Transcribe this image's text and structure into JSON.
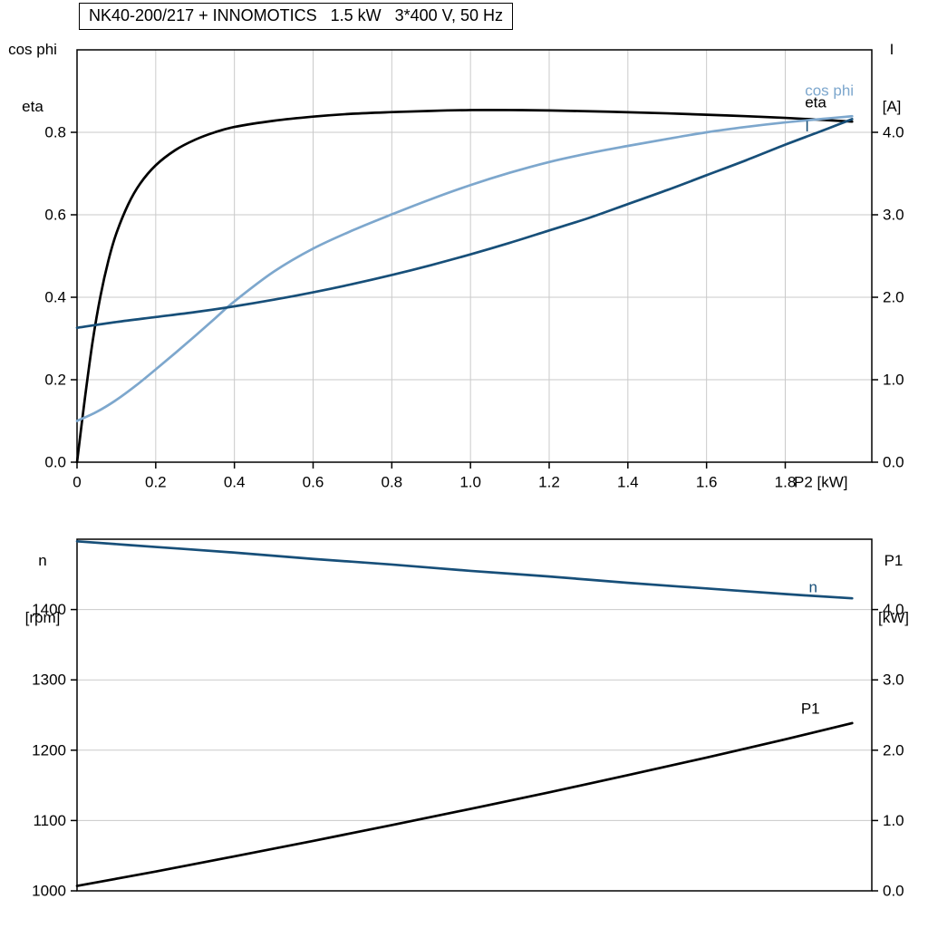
{
  "palette": {
    "grid": "#cacaca",
    "frame": "#000000",
    "black": "#000000",
    "light_blue": "#7da7cd",
    "dark_blue": "#174f79"
  },
  "chart_data": [
    {
      "id": "electrical-curves",
      "type": "line",
      "title": "NK40-200/217 + INNOMOTICS   1.5 kW   3*400 V, 50 Hz",
      "x_axis": {
        "label": "P2 [kW]",
        "min": 0,
        "max": 2.02,
        "tick_values": [
          0,
          0.2,
          0.4,
          0.6,
          0.8,
          1.0,
          1.2,
          1.4,
          1.6,
          1.8
        ],
        "tick_labels": [
          "0",
          "0.2",
          "0.4",
          "0.6",
          "0.8",
          "1.0",
          "1.2",
          "1.4",
          "1.6",
          "1.8"
        ],
        "grid": true
      },
      "y_left": {
        "unit_lines": [
          "cos phi",
          "eta"
        ],
        "min": 0,
        "max": 1.0,
        "tick_values": [
          0,
          0.2,
          0.4,
          0.6,
          0.8
        ],
        "tick_labels": [
          "0.0",
          "0.2",
          "0.4",
          "0.6",
          "0.8"
        ],
        "grid": true
      },
      "y_right": {
        "unit_lines": [
          "I",
          "[A]"
        ],
        "min": 0,
        "max": 5,
        "tick_values": [
          0,
          1,
          2,
          3,
          4
        ],
        "tick_labels": [
          "0.0",
          "1.0",
          "2.0",
          "3.0",
          "4.0"
        ]
      },
      "series": [
        {
          "name": "eta",
          "label": "eta",
          "axis": "left",
          "color": "#000000",
          "label_at": [
            1.85,
            0.872
          ],
          "points": [
            [
              0,
              0
            ],
            [
              0.02,
              0.155
            ],
            [
              0.04,
              0.295
            ],
            [
              0.06,
              0.405
            ],
            [
              0.08,
              0.49
            ],
            [
              0.1,
              0.555
            ],
            [
              0.13,
              0.625
            ],
            [
              0.16,
              0.675
            ],
            [
              0.2,
              0.72
            ],
            [
              0.25,
              0.757
            ],
            [
              0.3,
              0.782
            ],
            [
              0.35,
              0.8
            ],
            [
              0.4,
              0.813
            ],
            [
              0.5,
              0.828
            ],
            [
              0.6,
              0.838
            ],
            [
              0.7,
              0.845
            ],
            [
              0.8,
              0.849
            ],
            [
              0.9,
              0.852
            ],
            [
              1.0,
              0.854
            ],
            [
              1.1,
              0.854
            ],
            [
              1.2,
              0.853
            ],
            [
              1.35,
              0.85
            ],
            [
              1.5,
              0.846
            ],
            [
              1.65,
              0.841
            ],
            [
              1.8,
              0.835
            ],
            [
              1.97,
              0.826
            ]
          ]
        },
        {
          "name": "cos phi",
          "label": "cos phi",
          "axis": "left",
          "color": "#7da7cd",
          "label_at": [
            1.85,
            0.901
          ],
          "points": [
            [
              0,
              0.1
            ],
            [
              0.05,
              0.122
            ],
            [
              0.1,
              0.151
            ],
            [
              0.15,
              0.186
            ],
            [
              0.2,
              0.225
            ],
            [
              0.25,
              0.265
            ],
            [
              0.3,
              0.306
            ],
            [
              0.35,
              0.348
            ],
            [
              0.4,
              0.39
            ],
            [
              0.5,
              0.462
            ],
            [
              0.6,
              0.518
            ],
            [
              0.7,
              0.562
            ],
            [
              0.8,
              0.601
            ],
            [
              0.9,
              0.638
            ],
            [
              1.0,
              0.672
            ],
            [
              1.1,
              0.702
            ],
            [
              1.2,
              0.728
            ],
            [
              1.3,
              0.749
            ],
            [
              1.4,
              0.767
            ],
            [
              1.5,
              0.784
            ],
            [
              1.6,
              0.8
            ],
            [
              1.7,
              0.813
            ],
            [
              1.8,
              0.824
            ],
            [
              1.9,
              0.833
            ],
            [
              1.97,
              0.839
            ]
          ]
        },
        {
          "name": "I",
          "label": "I",
          "axis": "right",
          "color": "#174f79",
          "label_at": [
            1.85,
            4.07
          ],
          "points": [
            [
              0,
              1.63
            ],
            [
              0.1,
              1.7
            ],
            [
              0.2,
              1.76
            ],
            [
              0.3,
              1.82
            ],
            [
              0.4,
              1.89
            ],
            [
              0.5,
              1.97
            ],
            [
              0.6,
              2.06
            ],
            [
              0.7,
              2.16
            ],
            [
              0.8,
              2.27
            ],
            [
              0.9,
              2.39
            ],
            [
              1.0,
              2.52
            ],
            [
              1.1,
              2.66
            ],
            [
              1.2,
              2.81
            ],
            [
              1.3,
              2.96
            ],
            [
              1.4,
              3.13
            ],
            [
              1.5,
              3.3
            ],
            [
              1.6,
              3.48
            ],
            [
              1.7,
              3.66
            ],
            [
              1.8,
              3.85
            ],
            [
              1.9,
              4.03
            ],
            [
              1.97,
              4.16
            ]
          ]
        }
      ]
    },
    {
      "id": "speed-power-curves",
      "type": "line",
      "title": "",
      "x_axis": {
        "label": "",
        "min": 0,
        "max": 2.02,
        "tick_values": [],
        "tick_labels": [],
        "grid": false
      },
      "y_left": {
        "unit_lines": [
          "n",
          "[rpm]"
        ],
        "min": 1000,
        "max": 1500,
        "tick_values": [
          1000,
          1100,
          1200,
          1300,
          1400
        ],
        "tick_labels": [
          "1000",
          "1100",
          "1200",
          "1300",
          "1400"
        ],
        "grid": true
      },
      "y_right": {
        "unit_lines": [
          "P1",
          "[kW]"
        ],
        "min": 0,
        "max": 5,
        "tick_values": [
          0,
          1,
          2,
          3,
          4
        ],
        "tick_labels": [
          "0.0",
          "1.0",
          "2.0",
          "3.0",
          "4.0"
        ]
      },
      "series": [
        {
          "name": "n",
          "label": "n",
          "axis": "left",
          "color": "#174f79",
          "label_at": [
            1.86,
            1432
          ],
          "points": [
            [
              0,
              1497
            ],
            [
              0.2,
              1489
            ],
            [
              0.4,
              1481
            ],
            [
              0.6,
              1472
            ],
            [
              0.8,
              1464
            ],
            [
              1.0,
              1455
            ],
            [
              1.2,
              1447
            ],
            [
              1.4,
              1438
            ],
            [
              1.6,
              1430
            ],
            [
              1.8,
              1422
            ],
            [
              1.97,
              1416
            ]
          ]
        },
        {
          "name": "P1",
          "label": "P1",
          "axis": "right",
          "color": "#000000",
          "label_at": [
            1.84,
            2.59
          ],
          "points": [
            [
              0,
              0.07
            ],
            [
              0.2,
              0.275
            ],
            [
              0.4,
              0.49
            ],
            [
              0.6,
              0.71
            ],
            [
              0.8,
              0.935
            ],
            [
              1.0,
              1.165
            ],
            [
              1.2,
              1.4
            ],
            [
              1.4,
              1.645
            ],
            [
              1.6,
              1.895
            ],
            [
              1.8,
              2.155
            ],
            [
              1.97,
              2.385
            ]
          ]
        }
      ]
    }
  ]
}
